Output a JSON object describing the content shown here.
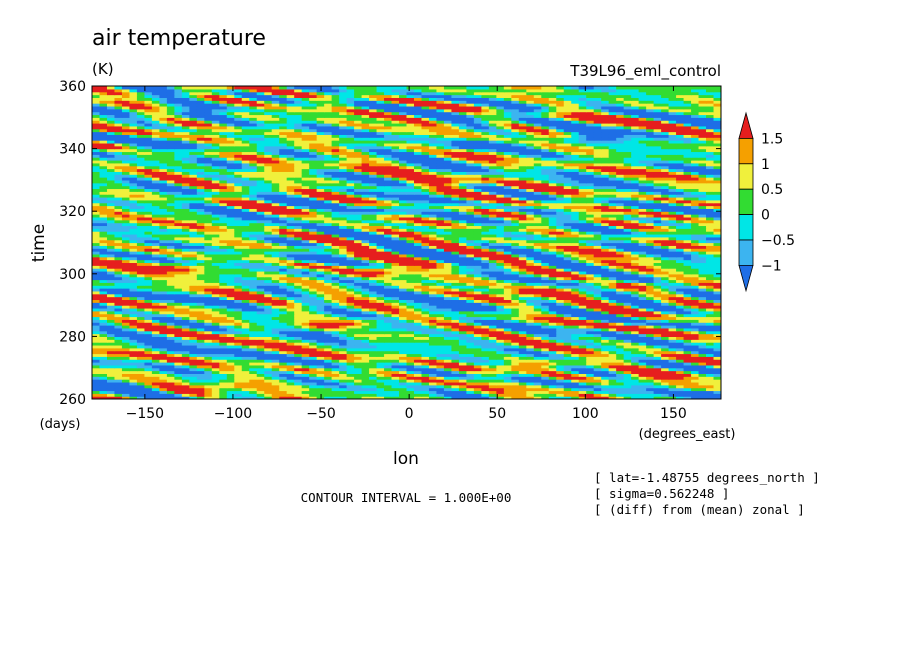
{
  "chart_data": {
    "type": "heatmap",
    "title": "air temperature",
    "units_label": "(K)",
    "experiment": "T39L96_eml_control",
    "xlabel": "lon",
    "xunit": "(degrees_east)",
    "ylabel": "time",
    "yunit": "(days)",
    "xlim": [
      -180,
      177
    ],
    "ylim": [
      260,
      360
    ],
    "xticks": [
      -150,
      -100,
      -50,
      0,
      50,
      100,
      150
    ],
    "yticks": [
      260,
      280,
      300,
      320,
      340,
      360
    ],
    "colorbar": {
      "levels": [
        -1,
        -0.5,
        0,
        0.5,
        1,
        1.5
      ],
      "colors": [
        "#1e6ee6",
        "#3cb4f0",
        "#00e6e6",
        "#32dc32",
        "#f0f03c",
        "#f5a000",
        "#e61e1e"
      ],
      "extends": "both"
    },
    "contour_interval": "CONTOUR INTERVAL = 1.000E+00",
    "info_lines": [
      "[ lat=-1.48755 degrees_north ]",
      "[ sigma=0.562248 ]",
      "[ (diff) from (mean) zonal ]"
    ],
    "anomaly_features": [
      {
        "lon": -35,
        "time": 284,
        "value": 1.6
      },
      {
        "lon": -17,
        "time": 301,
        "value": 1.6
      },
      {
        "lon": 120,
        "time": 296,
        "value": 1.3
      },
      {
        "lon": 68,
        "time": 294,
        "value": 1.5
      },
      {
        "lon": 70,
        "time": 271,
        "value": 1.4
      },
      {
        "lon": -110,
        "time": 264,
        "value": 1.2
      },
      {
        "lon": -130,
        "time": 302,
        "value": 1.3
      },
      {
        "lon": 145,
        "time": 268,
        "value": 1.2
      },
      {
        "lon": 30,
        "time": 330,
        "value": 1.1
      },
      {
        "lon": -75,
        "time": 333,
        "value": 1.3
      },
      {
        "lon": -40,
        "time": 282,
        "value": -1.3
      },
      {
        "lon": 20,
        "time": 289,
        "value": -1.4
      },
      {
        "lon": 120,
        "time": 298,
        "value": -1.2
      },
      {
        "lon": -20,
        "time": 320,
        "value": -1.2
      },
      {
        "lon": 35,
        "time": 341,
        "value": -1.3
      },
      {
        "lon": -170,
        "time": 264,
        "value": -1.4
      },
      {
        "lon": 170,
        "time": 262,
        "value": -1.3
      },
      {
        "lon": -150,
        "time": 340,
        "value": -1.2
      },
      {
        "lon": 100,
        "time": 343,
        "value": -1.2
      },
      {
        "lon": -60,
        "time": 305,
        "value": -1.2
      },
      {
        "lon": 60,
        "time": 352,
        "value": -1.1
      },
      {
        "lon": -120,
        "time": 352,
        "value": -1.0
      }
    ]
  }
}
